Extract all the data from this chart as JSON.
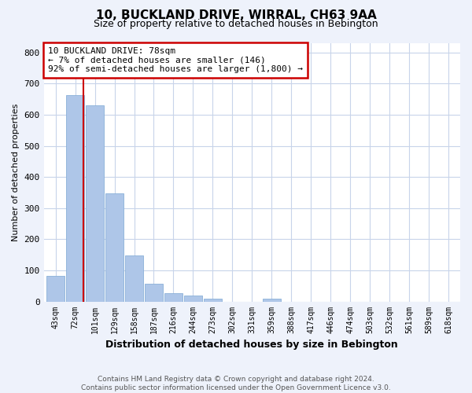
{
  "title": "10, BUCKLAND DRIVE, WIRRAL, CH63 9AA",
  "subtitle": "Size of property relative to detached houses in Bebington",
  "xlabel": "Distribution of detached houses by size in Bebington",
  "ylabel": "Number of detached properties",
  "categories": [
    "43sqm",
    "72sqm",
    "101sqm",
    "129sqm",
    "158sqm",
    "187sqm",
    "216sqm",
    "244sqm",
    "273sqm",
    "302sqm",
    "331sqm",
    "359sqm",
    "388sqm",
    "417sqm",
    "446sqm",
    "474sqm",
    "503sqm",
    "532sqm",
    "561sqm",
    "589sqm",
    "618sqm"
  ],
  "values": [
    83,
    663,
    630,
    348,
    148,
    57,
    27,
    18,
    8,
    0,
    0,
    8,
    0,
    0,
    0,
    0,
    0,
    0,
    0,
    0,
    0
  ],
  "bar_color": "#aec6e8",
  "vline_color": "#cc0000",
  "vline_x": 1.42,
  "ylim": [
    0,
    830
  ],
  "yticks": [
    0,
    100,
    200,
    300,
    400,
    500,
    600,
    700,
    800
  ],
  "annotation_line1": "10 BUCKLAND DRIVE: 78sqm",
  "annotation_line2": "← 7% of detached houses are smaller (146)",
  "annotation_line3": "92% of semi-detached houses are larger (1,800) →",
  "ann_box_edgecolor": "#cc0000",
  "footer_line1": "Contains HM Land Registry data © Crown copyright and database right 2024.",
  "footer_line2": "Contains public sector information licensed under the Open Government Licence v3.0.",
  "bg_color": "#eef2fb",
  "plot_bg_color": "#ffffff",
  "grid_color": "#c8d4ea"
}
